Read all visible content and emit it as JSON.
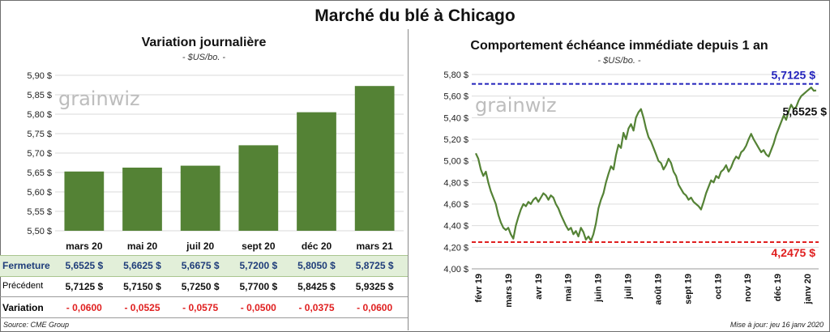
{
  "title": "Marché du blé à Chicago",
  "left_panel": {
    "title": "Variation  journalière",
    "subtitle": "- $US/bo. -",
    "watermark": "grainwiz"
  },
  "right_panel": {
    "title": "Comportement  échéance immédiate depuis 1 an",
    "subtitle": "- $US/bo. -",
    "watermark": "grainwiz"
  },
  "table": {
    "rows": [
      {
        "label": "Fermeture",
        "values": [
          "5,6525  $",
          "5,6625  $",
          "5,6675  $",
          "5,7200  $",
          "5,8050  $",
          "5,8725  $"
        ]
      },
      {
        "label": "Précédent",
        "values": [
          "5,7125  $",
          "5,7150  $",
          "5,7250  $",
          "5,7700  $",
          "5,8425  $",
          "5,9325  $"
        ]
      },
      {
        "label": "Variation",
        "values": [
          "- 0,0600",
          "- 0,0525",
          "- 0,0575",
          "- 0,0500",
          "- 0,0375",
          "- 0,0600"
        ]
      }
    ]
  },
  "footer": {
    "source": "Source: CME Group",
    "updated": "Mise à jour: jeu 16 janv 2020"
  },
  "colors": {
    "bar": "#548235",
    "line": "#548235",
    "high_line": "#2222bb",
    "low_line": "#e02020",
    "negative": "#e02020",
    "close_row_bg": "#e2efd9"
  },
  "chart_data": [
    {
      "type": "bar",
      "categories": [
        "mars 20",
        "mai 20",
        "juil 20",
        "sept 20",
        "déc 20",
        "mars 21"
      ],
      "values": [
        5.6525,
        5.6625,
        5.6675,
        5.72,
        5.805,
        5.8725
      ],
      "ylim": [
        5.5,
        5.9
      ],
      "yticks": [
        5.5,
        5.55,
        5.6,
        5.65,
        5.7,
        5.75,
        5.8,
        5.85,
        5.9
      ],
      "ytick_labels": [
        "5,50 $",
        "5,55 $",
        "5,60 $",
        "5,65 $",
        "5,70 $",
        "5,75 $",
        "5,80 $",
        "5,85 $",
        "5,90 $"
      ],
      "grid": true
    },
    {
      "type": "line",
      "ylim": [
        4.0,
        5.8
      ],
      "yticks": [
        4.0,
        4.2,
        4.4,
        4.6,
        4.8,
        5.0,
        5.2,
        5.4,
        5.6,
        5.8
      ],
      "ytick_labels": [
        "4,00 $",
        "4,20 $",
        "4,40 $",
        "4,60 $",
        "4,80 $",
        "5,00 $",
        "5,20 $",
        "5,40 $",
        "5,60 $",
        "5,80 $"
      ],
      "x_labels": [
        "févr 19",
        "mars 19",
        "avr 19",
        "mai 19",
        "juin 19",
        "juil 19",
        "août 19",
        "sept 19",
        "oct 19",
        "nov 19",
        "déc 19",
        "janv 20"
      ],
      "series": [
        {
          "values": [
            5.07,
            5.02,
            4.92,
            4.86,
            4.9,
            4.8,
            4.72,
            4.66,
            4.6,
            4.5,
            4.43,
            4.38,
            4.36,
            4.38,
            4.32,
            4.28,
            4.4,
            4.48,
            4.55,
            4.6,
            4.58,
            4.62,
            4.6,
            4.64,
            4.66,
            4.62,
            4.66,
            4.7,
            4.68,
            4.64,
            4.68,
            4.66,
            4.6,
            4.56,
            4.5,
            4.45,
            4.4,
            4.36,
            4.38,
            4.32,
            4.35,
            4.3,
            4.38,
            4.34,
            4.27,
            4.3,
            4.26,
            4.32,
            4.42,
            4.56,
            4.64,
            4.7,
            4.8,
            4.88,
            4.95,
            4.92,
            5.05,
            5.15,
            5.12,
            5.26,
            5.2,
            5.3,
            5.34,
            5.28,
            5.4,
            5.45,
            5.48,
            5.4,
            5.3,
            5.22,
            5.18,
            5.12,
            5.06,
            5.0,
            4.98,
            4.92,
            4.96,
            5.02,
            4.98,
            4.9,
            4.86,
            4.78,
            4.74,
            4.7,
            4.68,
            4.64,
            4.66,
            4.62,
            4.6,
            4.58,
            4.55,
            4.62,
            4.7,
            4.76,
            4.82,
            4.8,
            4.86,
            4.84,
            4.9,
            4.92,
            4.96,
            4.9,
            4.94,
            5.0,
            5.04,
            5.02,
            5.08,
            5.1,
            5.14,
            5.2,
            5.25,
            5.2,
            5.16,
            5.12,
            5.08,
            5.1,
            5.06,
            5.04,
            5.1,
            5.16,
            5.24,
            5.3,
            5.36,
            5.42,
            5.38,
            5.46,
            5.52,
            5.48,
            5.5,
            5.56,
            5.6,
            5.62,
            5.64,
            5.66,
            5.68,
            5.65,
            5.6525
          ]
        }
      ],
      "reference_lines": [
        {
          "value": 5.7125,
          "label": "5,7125  $"
        },
        {
          "value": 4.2475,
          "label": "4,2475  $"
        }
      ],
      "last_label": "5,6525 $",
      "grid": true
    }
  ]
}
